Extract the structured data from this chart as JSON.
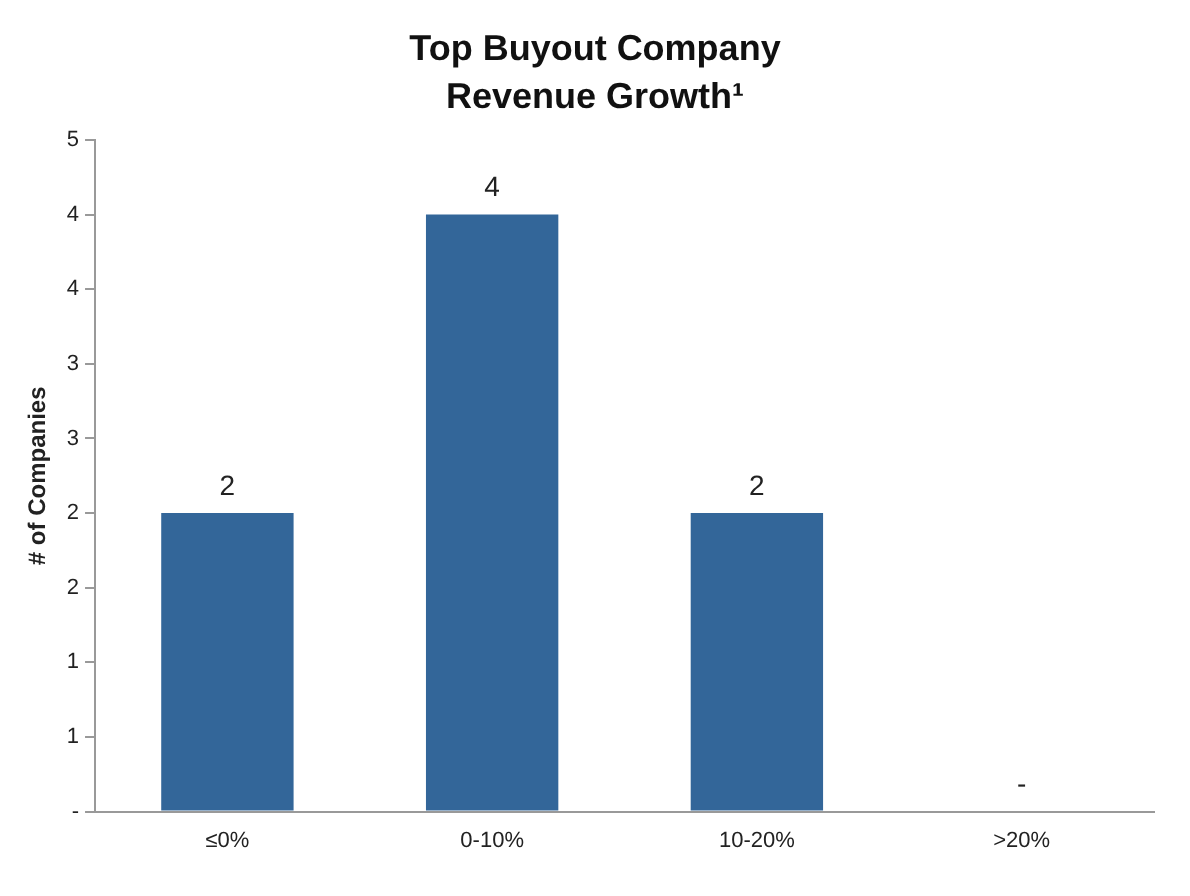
{
  "chart_data": {
    "type": "bar",
    "title": "Top Buyout Company Revenue Growth¹",
    "ylabel": "# of Companies",
    "categories": [
      "≤0%",
      "0-10%",
      "10-20%",
      ">20%"
    ],
    "values": [
      2,
      4,
      2,
      0
    ],
    "color": "#336699",
    "value_labels": [
      "2",
      "4",
      "2",
      "-"
    ],
    "ylim": [
      0,
      4.5
    ],
    "yticks": [
      {
        "value": 0,
        "label": "-"
      },
      {
        "value": 0.5,
        "label": "1"
      },
      {
        "value": 1,
        "label": "1"
      },
      {
        "value": 1.5,
        "label": "2"
      },
      {
        "value": 2,
        "label": "2"
      },
      {
        "value": 2.5,
        "label": "3"
      },
      {
        "value": 3,
        "label": "3"
      },
      {
        "value": 3.5,
        "label": "4"
      },
      {
        "value": 4,
        "label": "4"
      },
      {
        "value": 4.5,
        "label": "5"
      }
    ],
    "grid": false,
    "legend": false
  }
}
